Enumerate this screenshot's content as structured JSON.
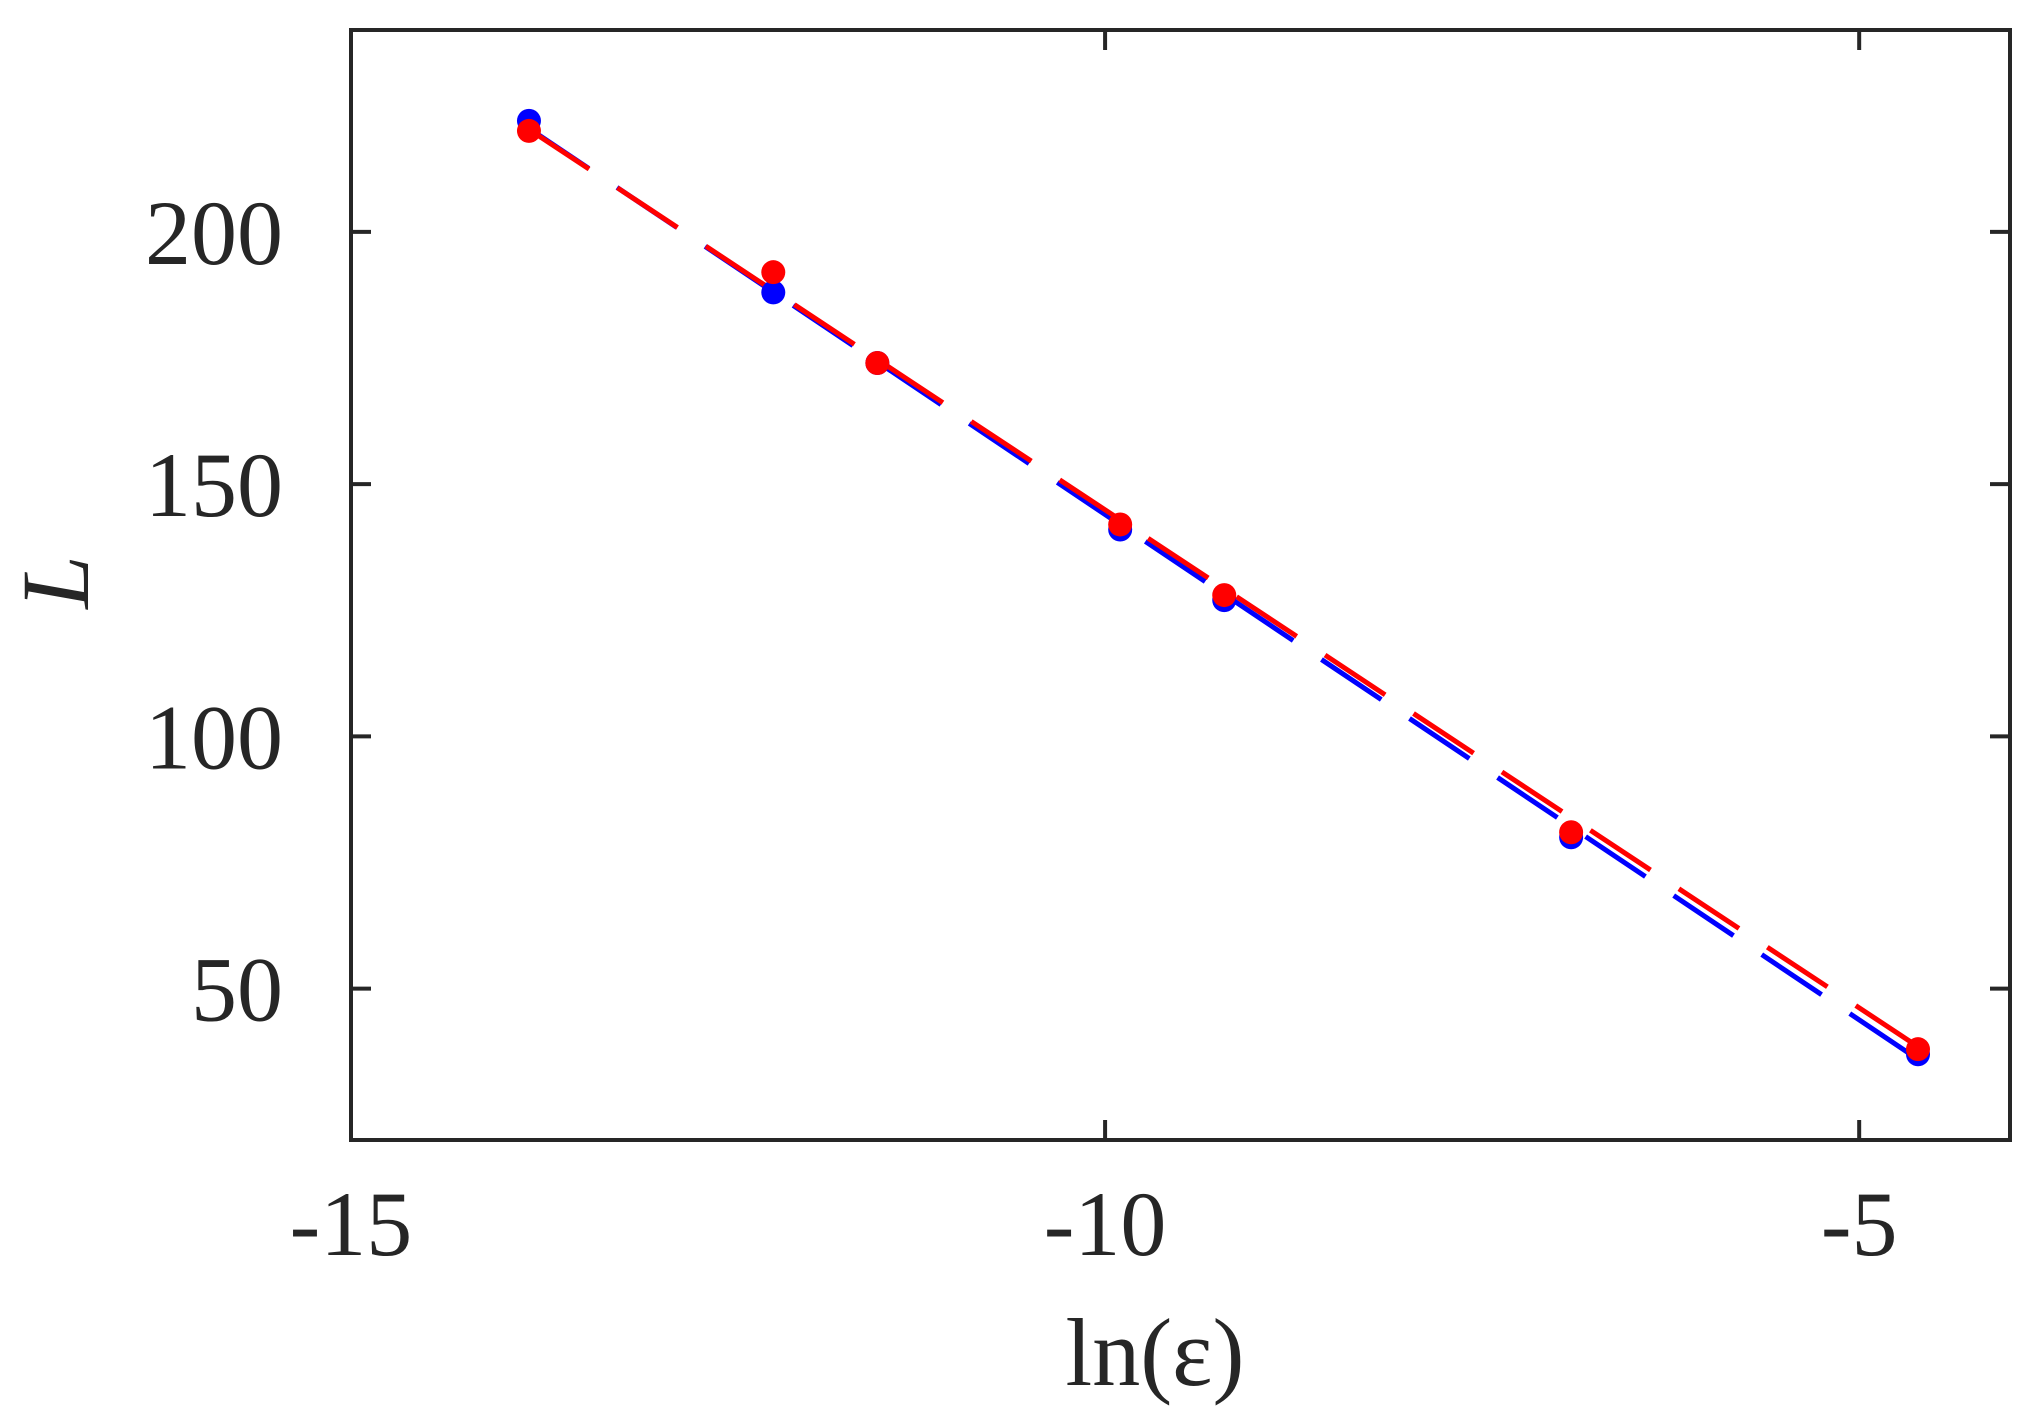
{
  "chart_data": {
    "type": "scatter",
    "xlabel": "ln(ε)",
    "ylabel": "L",
    "xlim": [
      -15,
      -4
    ],
    "ylim": [
      20,
      240
    ],
    "x_ticks": [
      -15,
      -10,
      -5
    ],
    "y_ticks": [
      50,
      100,
      150,
      200
    ],
    "x_tick_labels": [
      "-15",
      "-10",
      "-5"
    ],
    "y_tick_labels": [
      "50",
      "100",
      "150",
      "200"
    ],
    "grid": false,
    "series": [
      {
        "color": "#0000ff",
        "points": [
          {
            "x": -13.82,
            "y": 222
          },
          {
            "x": -12.2,
            "y": 188
          },
          {
            "x": -11.51,
            "y": 174
          },
          {
            "x": -9.9,
            "y": 141
          },
          {
            "x": -9.21,
            "y": 127
          },
          {
            "x": -6.91,
            "y": 80
          },
          {
            "x": -4.61,
            "y": 37
          }
        ],
        "fit": {
          "x": [
            -13.82,
            -4.61
          ],
          "y": [
            220.5,
            36
          ]
        }
      },
      {
        "color": "#ff0000",
        "points": [
          {
            "x": -13.82,
            "y": 220
          },
          {
            "x": -12.2,
            "y": 192
          },
          {
            "x": -11.51,
            "y": 174
          },
          {
            "x": -9.9,
            "y": 142
          },
          {
            "x": -9.21,
            "y": 128
          },
          {
            "x": -6.91,
            "y": 81
          },
          {
            "x": -4.61,
            "y": 38
          }
        ],
        "fit": {
          "x": [
            -13.82,
            -4.61
          ],
          "y": [
            220.3,
            38.5
          ]
        }
      }
    ]
  }
}
